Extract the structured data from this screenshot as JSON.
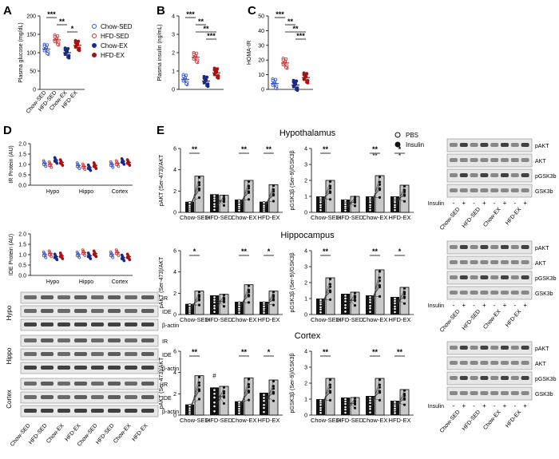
{
  "panel_letters": {
    "A": "A",
    "B": "B",
    "C": "C",
    "D": "D",
    "E": "E"
  },
  "colors": {
    "chow_sed": "#3355cc",
    "hfd_sed": "#cc3333",
    "chow_ex": "#1a2a88",
    "hfd_ex": "#aa1111",
    "black": "#111111",
    "bar_insulin": "#c8c8c8"
  },
  "legend_groups": [
    {
      "label": "Chow-SED",
      "color": "#3355cc",
      "filled": false
    },
    {
      "label": "HFD-SED",
      "color": "#cc3333",
      "filled": false
    },
    {
      "label": "Chow-EX",
      "color": "#1a2a88",
      "filled": true
    },
    {
      "label": "HFD-EX",
      "color": "#aa1111",
      "filled": true
    }
  ],
  "legend_treatment": [
    {
      "label": "PBS",
      "filled": false
    },
    {
      "label": "Insulin",
      "filled": true
    }
  ],
  "groups": [
    "Chow-SED",
    "HFD-SED",
    "Chow-EX",
    "HFD-EX"
  ],
  "region_titles": [
    "Hypothalamus",
    "Hippocampus",
    "Cortex"
  ],
  "blot_bands_E": [
    "pAKT",
    "AKT",
    "pGSK3b",
    "GSK3b"
  ],
  "blot_bands_D": [
    "IR",
    "IDE",
    "β-actin"
  ],
  "blot_regions_D": [
    "Hypo",
    "Hippo",
    "Cortex"
  ],
  "insulin_row": {
    "label": "Insulin",
    "signs": [
      "-",
      "+",
      "-",
      "+",
      "-",
      "+",
      "-",
      "+"
    ]
  },
  "chart_data": [
    {
      "panel": "A",
      "type": "scatter",
      "ylabel": "Plasma glucose (mg/dL)",
      "ylim": [
        0,
        200
      ],
      "yticks": [
        "0",
        "50",
        "100",
        "150",
        "200"
      ],
      "categories": [
        "Chow-SED",
        "HFD-SED",
        "Chow-EX",
        "HFD-EX"
      ],
      "means": [
        110,
        135,
        100,
        120
      ],
      "significance": [
        {
          "from": 0,
          "to": 1,
          "label": "***"
        },
        {
          "from": 1,
          "to": 2,
          "label": "**"
        },
        {
          "from": 2,
          "to": 3,
          "label": "*"
        }
      ]
    },
    {
      "panel": "B",
      "type": "scatter",
      "ylabel": "Plasma insulin (ng/mL)",
      "ylim": [
        0,
        4
      ],
      "yticks": [
        "0",
        "1",
        "2",
        "3",
        "4"
      ],
      "categories": [
        "Chow-SED",
        "HFD-SED",
        "Chow-EX",
        "HFD-EX"
      ],
      "means": [
        0.55,
        1.75,
        0.45,
        0.9
      ],
      "significance": [
        {
          "from": 0,
          "to": 1,
          "label": "***"
        },
        {
          "from": 1,
          "to": 2,
          "label": "**"
        },
        {
          "from": 1,
          "to": 3,
          "label": "**"
        },
        {
          "from": 2,
          "to": 3,
          "label": "***"
        }
      ]
    },
    {
      "panel": "C",
      "type": "scatter",
      "ylabel": "HOMA-IR",
      "ylim": [
        0,
        50
      ],
      "yticks": [
        "0",
        "10",
        "20",
        "30",
        "40",
        "50"
      ],
      "categories": [
        "Chow-SED",
        "HFD-SED",
        "Chow-EX",
        "HFD-EX"
      ],
      "means": [
        4,
        18,
        3,
        8
      ],
      "significance": [
        {
          "from": 0,
          "to": 1,
          "label": "***"
        },
        {
          "from": 1,
          "to": 2,
          "label": "**"
        },
        {
          "from": 1,
          "to": 3,
          "label": "**"
        },
        {
          "from": 2,
          "to": 3,
          "label": "***"
        }
      ]
    },
    {
      "panel": "D1",
      "type": "scatter",
      "ylabel": "IR Protein (AU)",
      "ylim": [
        0,
        2.0
      ],
      "yticks": [
        "0.0",
        "0.5",
        "1.0",
        "1.5",
        "2.0"
      ],
      "regions": [
        "Hypo",
        "Hippo",
        "Cortex"
      ],
      "means": [
        [
          1.05,
          1.0,
          1.2,
          1.1
        ],
        [
          0.95,
          0.9,
          0.85,
          0.95
        ],
        [
          1.0,
          1.05,
          1.15,
          1.1
        ]
      ]
    },
    {
      "panel": "D2",
      "type": "scatter",
      "ylabel": "IDE Protein (AU)",
      "ylim": [
        0,
        2.0
      ],
      "yticks": [
        "0.0",
        "0.5",
        "1.0",
        "1.5",
        "2.0"
      ],
      "regions": [
        "Hypo",
        "Hippo",
        "Cortex"
      ],
      "means": [
        [
          1.0,
          1.05,
          0.9,
          0.95
        ],
        [
          1.0,
          1.1,
          0.95,
          1.05
        ],
        [
          1.0,
          1.1,
          0.85,
          0.9
        ]
      ]
    },
    {
      "panel": "E-Hypothalamus-pAKT",
      "type": "bar",
      "ylabel": "pAKT (Ser-473)/AKT",
      "ylim": [
        0,
        6
      ],
      "yticks": [
        "0",
        "2",
        "4",
        "6"
      ],
      "categories": [
        "Chow-SED",
        "HFD-SED",
        "Chow-EX",
        "HFD-EX"
      ],
      "series": [
        {
          "name": "PBS",
          "values": [
            1.0,
            1.7,
            1.2,
            1.0
          ]
        },
        {
          "name": "Insulin",
          "values": [
            3.4,
            1.6,
            3.0,
            2.6
          ]
        }
      ],
      "stars": [
        "**",
        "",
        "**",
        "**"
      ]
    },
    {
      "panel": "E-Hypothalamus-pGSK3b",
      "type": "bar",
      "ylabel": "pGSK3β (Ser-9)/GSK3β",
      "ylim": [
        0,
        4
      ],
      "yticks": [
        "0",
        "1",
        "2",
        "3",
        "4"
      ],
      "categories": [
        "Chow-SED",
        "HFD-SED",
        "Chow-EX",
        "HFD-EX"
      ],
      "series": [
        {
          "name": "PBS",
          "values": [
            1.0,
            0.8,
            1.0,
            1.0
          ]
        },
        {
          "name": "Insulin",
          "values": [
            2.0,
            1.0,
            2.3,
            1.7
          ]
        }
      ],
      "stars": [
        "**",
        "",
        "**",
        "*"
      ],
      "stars2": [
        "",
        "",
        "**",
        "*"
      ]
    },
    {
      "panel": "E-Hippocampus-pAKT",
      "type": "bar",
      "ylabel": "pAKT (Ser-473)/AKT",
      "ylim": [
        0,
        6
      ],
      "yticks": [
        "0",
        "2",
        "4",
        "6"
      ],
      "categories": [
        "Chow-SED",
        "HFD-SED",
        "Chow-EX",
        "HFD-EX"
      ],
      "series": [
        {
          "name": "PBS",
          "values": [
            1.0,
            1.8,
            1.2,
            1.2
          ]
        },
        {
          "name": "Insulin",
          "values": [
            2.2,
            1.9,
            2.8,
            2.2
          ]
        }
      ],
      "stars": [
        "*",
        "",
        "**",
        "*"
      ]
    },
    {
      "panel": "E-Hippocampus-pGSK3b",
      "type": "bar",
      "ylabel": "pGSK3β (Ser-9)/GSK3β",
      "ylim": [
        0,
        4
      ],
      "yticks": [
        "0",
        "1",
        "2",
        "3",
        "4"
      ],
      "categories": [
        "Chow-SED",
        "HFD-SED",
        "Chow-EX",
        "HFD-EX"
      ],
      "series": [
        {
          "name": "PBS",
          "values": [
            1.0,
            1.3,
            1.2,
            1.1
          ]
        },
        {
          "name": "Insulin",
          "values": [
            2.3,
            1.4,
            2.8,
            1.7
          ]
        }
      ],
      "stars": [
        "**",
        "",
        "**",
        "*"
      ]
    },
    {
      "panel": "E-Cortex-pAKT",
      "type": "bar",
      "ylabel": "pAKT (Ser-473)/AKT",
      "ylim": [
        0,
        6
      ],
      "yticks": [
        "0",
        "2",
        "4",
        "6"
      ],
      "categories": [
        "Chow-SED",
        "HFD-SED",
        "Chow-EX",
        "HFD-EX"
      ],
      "series": [
        {
          "name": "PBS",
          "values": [
            1.0,
            2.6,
            1.3,
            2.1
          ]
        },
        {
          "name": "Insulin",
          "values": [
            3.7,
            2.7,
            3.5,
            3.3
          ]
        }
      ],
      "stars": [
        "**",
        "",
        "**",
        "*"
      ],
      "marks": [
        "",
        "#",
        "",
        ""
      ]
    },
    {
      "panel": "E-Cortex-pGSK3b",
      "type": "bar",
      "ylabel": "pGSK3β (Ser-9)/GSK3β",
      "ylim": [
        0,
        4
      ],
      "yticks": [
        "0",
        "1",
        "2",
        "3",
        "4"
      ],
      "categories": [
        "Chow-SED",
        "HFD-SED",
        "Chow-EX",
        "HFD-EX"
      ],
      "series": [
        {
          "name": "PBS",
          "values": [
            1.0,
            1.1,
            1.2,
            0.9
          ]
        },
        {
          "name": "Insulin",
          "values": [
            2.3,
            1.1,
            2.3,
            1.6
          ]
        }
      ],
      "stars": [
        "**",
        "",
        "**",
        "**"
      ]
    }
  ]
}
